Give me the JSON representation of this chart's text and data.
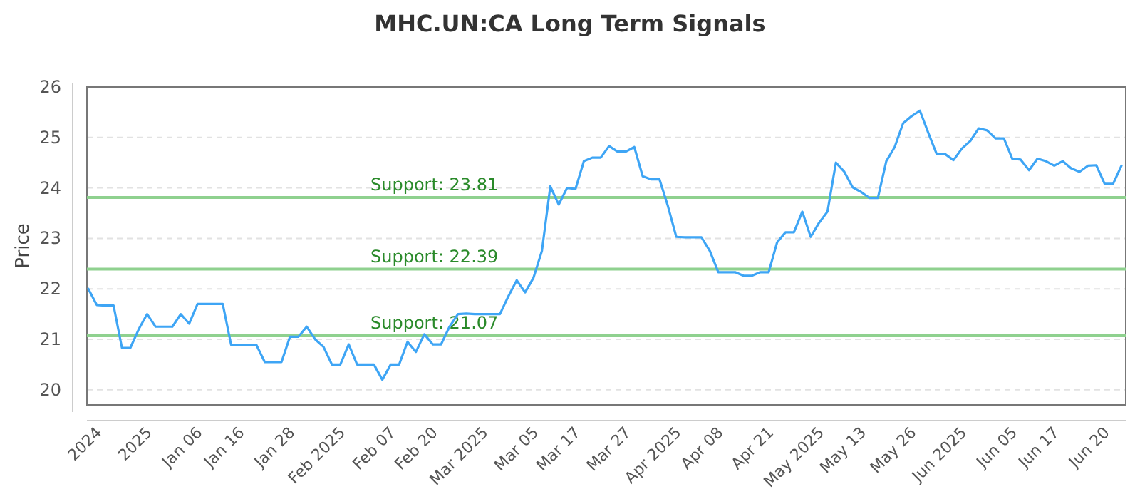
{
  "chart_data": {
    "type": "line",
    "title": "MHC.UN:CA Long Term Signals",
    "ylabel": "Price",
    "categories": [
      null,
      "2024",
      null,
      null,
      null,
      null,
      null,
      "2025",
      null,
      null,
      null,
      null,
      null,
      "Jan 06",
      null,
      null,
      null,
      null,
      "Jan 16",
      null,
      null,
      null,
      null,
      null,
      "Jan 28",
      null,
      null,
      null,
      null,
      null,
      "Feb 2025",
      null,
      null,
      null,
      null,
      null,
      "Feb 07",
      null,
      null,
      null,
      null,
      "Feb 20",
      null,
      null,
      null,
      null,
      null,
      "Mar 2025",
      null,
      null,
      null,
      null,
      null,
      "Mar 05",
      null,
      null,
      null,
      null,
      "Mar 17",
      null,
      null,
      null,
      null,
      null,
      "Mar 27",
      null,
      null,
      null,
      null,
      null,
      "Apr 2025",
      null,
      null,
      null,
      null,
      "Apr 08",
      null,
      null,
      null,
      null,
      null,
      "Apr 21",
      null,
      null,
      null,
      null,
      null,
      "May 2025",
      null,
      null,
      null,
      null,
      "May 13",
      null,
      null,
      null,
      null,
      null,
      "May 26",
      null,
      null,
      null,
      null,
      null,
      "Jun 2025",
      null,
      null,
      null,
      null,
      null,
      "Jun 05",
      null,
      null,
      null,
      null,
      "Jun 17",
      null,
      null,
      null,
      null,
      null,
      "Jun 20",
      null,
      null
    ],
    "series": [
      {
        "color": "#3ea5f5",
        "values": [
          22.0,
          21.68,
          21.67,
          21.67,
          20.83,
          20.83,
          21.2,
          21.5,
          21.25,
          21.25,
          21.25,
          21.5,
          21.31,
          21.7,
          21.7,
          21.7,
          21.7,
          20.89,
          20.89,
          20.89,
          20.89,
          20.55,
          20.55,
          20.55,
          21.05,
          21.05,
          21.25,
          21.0,
          20.85,
          20.5,
          20.5,
          20.9,
          20.5,
          20.5,
          20.5,
          20.2,
          20.5,
          20.5,
          20.95,
          20.75,
          21.1,
          20.9,
          20.9,
          21.25,
          21.5,
          21.51,
          21.5,
          21.5,
          21.5,
          21.5,
          21.85,
          22.17,
          21.93,
          22.22,
          22.75,
          24.03,
          23.67,
          24.0,
          23.98,
          24.53,
          24.6,
          24.6,
          24.83,
          24.72,
          24.72,
          24.81,
          24.23,
          24.17,
          24.17,
          23.64,
          23.03,
          23.02,
          23.02,
          23.02,
          22.75,
          22.33,
          22.33,
          22.33,
          22.26,
          22.26,
          22.33,
          22.33,
          22.92,
          23.12,
          23.12,
          23.53,
          23.03,
          23.31,
          23.53,
          24.5,
          24.32,
          24.01,
          23.92,
          23.8,
          23.8,
          24.53,
          24.81,
          25.28,
          25.42,
          25.53,
          25.09,
          24.67,
          24.67,
          24.55,
          24.78,
          24.93,
          25.18,
          25.14,
          24.98,
          24.98,
          24.58,
          24.56,
          24.35,
          24.58,
          24.53,
          24.44,
          24.53,
          24.39,
          24.32,
          24.44,
          24.45,
          24.08,
          24.08,
          24.44
        ]
      }
    ],
    "ylim": [
      19.7,
      26
    ],
    "yticks": [
      20,
      21,
      22,
      23,
      24,
      25,
      26
    ],
    "grid": "y",
    "marker": "none",
    "line_style": "solid",
    "ref_lines": [
      {
        "axis": "y",
        "value": 23.81,
        "label": "Support: 23.81",
        "color": "#8fd18f"
      },
      {
        "axis": "y",
        "value": 22.39,
        "label": "Support: 22.39",
        "color": "#8fd18f"
      },
      {
        "axis": "y",
        "value": 21.07,
        "label": "Support: 21.07",
        "color": "#8fd18f"
      }
    ]
  }
}
